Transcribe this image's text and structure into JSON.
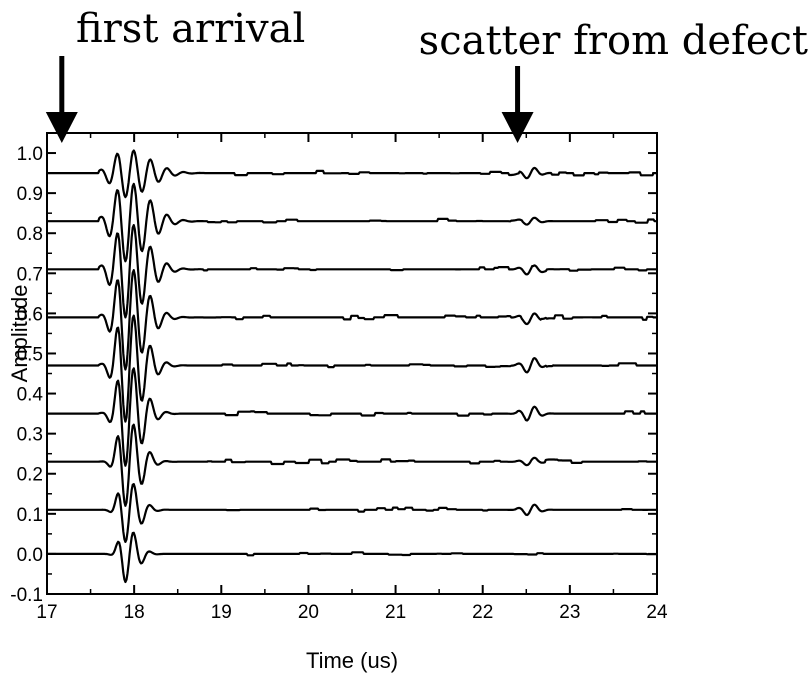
{
  "chart_data": {
    "type": "line",
    "title": "",
    "xlabel": "Time (us)",
    "ylabel": "Amplitude",
    "xlim": [
      17,
      24
    ],
    "ylim": [
      -0.1,
      1.05
    ],
    "x_ticks": [
      "17",
      "18",
      "19",
      "20",
      "21",
      "22",
      "23",
      "24"
    ],
    "y_ticks": [
      "-0.1",
      "0.0",
      "0.1",
      "0.2",
      "0.3",
      "0.4",
      "0.5",
      "0.6",
      "0.7",
      "0.8",
      "0.9",
      "1.0"
    ],
    "grid": false,
    "legend": "none",
    "line_color": "#000000",
    "annotations": [
      {
        "text": "first arrival",
        "arrow_x": 17.17
      },
      {
        "text": "scatter from defect",
        "arrow_x": 22.4
      }
    ],
    "series": [
      {
        "baseline": 0.0,
        "pulse_amp": 0.07,
        "defect_amp": 0.0
      },
      {
        "baseline": 0.11,
        "pulse_amp": 0.08,
        "defect_amp": 0.015
      },
      {
        "baseline": 0.23,
        "pulse_amp": 0.11,
        "defect_amp": 0.01
      },
      {
        "baseline": 0.35,
        "pulse_amp": 0.13,
        "defect_amp": 0.02
      },
      {
        "baseline": 0.47,
        "pulse_amp": 0.14,
        "defect_amp": 0.02
      },
      {
        "baseline": 0.59,
        "pulse_amp": 0.13,
        "defect_amp": 0.015
      },
      {
        "baseline": 0.71,
        "pulse_amp": 0.12,
        "defect_amp": 0.015
      },
      {
        "baseline": 0.83,
        "pulse_amp": 0.1,
        "defect_amp": 0.01
      },
      {
        "baseline": 0.95,
        "pulse_amp": 0.06,
        "defect_amp": 0.015
      }
    ]
  }
}
